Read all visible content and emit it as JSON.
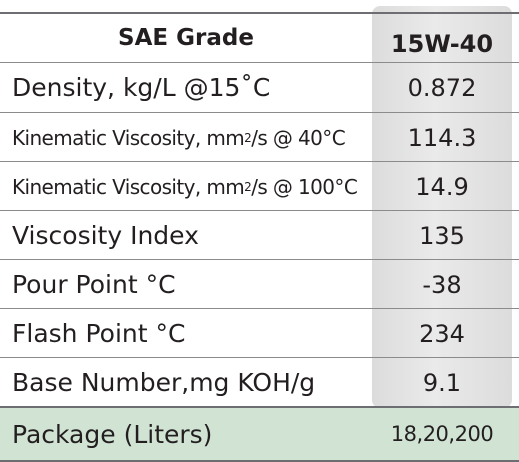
{
  "header": {
    "label": "SAE Grade",
    "grade": "15W-40"
  },
  "rows": [
    {
      "label": "Density, kg/L @15˚C",
      "value": "0.872"
    },
    {
      "label_before": "Kinematic Viscosity, mm",
      "label_sup": "2",
      "label_after": "/s @ 40°C",
      "value": "114.3"
    },
    {
      "label_before": "Kinematic Viscosity, mm",
      "label_sup": "2",
      "label_after": "/s @ 100°C",
      "value": "14.9"
    },
    {
      "label": "Viscosity Index",
      "value": "135"
    },
    {
      "label": "Pour Point °C",
      "value": "-38"
    },
    {
      "label": "Flash Point °C",
      "value": "234"
    },
    {
      "label": "Base Number,mg KOH/g",
      "value": "9.1"
    }
  ],
  "package": {
    "label": "Package (Liters)",
    "value": "18,20,200"
  },
  "colors": {
    "grade_column": "#e3e3e3",
    "package_band": "#d1e4d4",
    "rule": "#6d6e71",
    "text": "#231f20"
  }
}
